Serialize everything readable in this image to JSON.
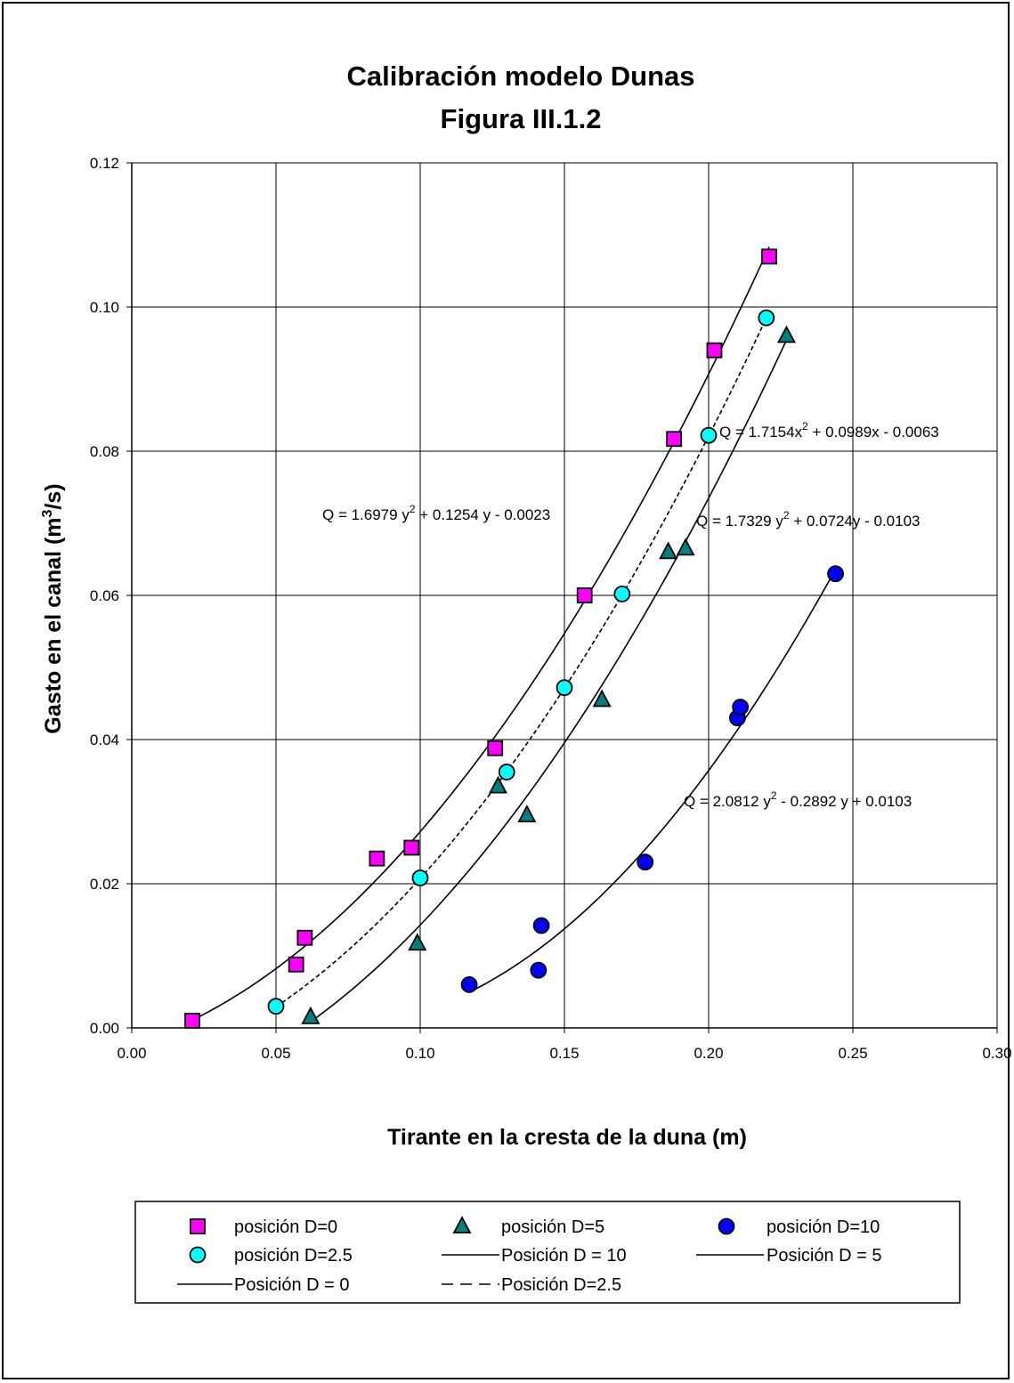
{
  "chart_data": {
    "type": "scatter",
    "title": "Calibración modelo Dunas",
    "subtitle": "Figura III.1.2",
    "xlabel": "Tirante en la cresta de la duna (m)",
    "ylabel_prefix": "Gasto en el canal (m",
    "ylabel_sup": "3",
    "ylabel_suffix": "/s)",
    "xlim": [
      0,
      0.3
    ],
    "ylim": [
      0,
      0.12
    ],
    "x_ticks": [
      "0.00",
      "0.05",
      "0.10",
      "0.15",
      "0.20",
      "0.25",
      "0.30"
    ],
    "y_ticks": [
      "0.00",
      "0.02",
      "0.04",
      "0.06",
      "0.08",
      "0.10",
      "0.12"
    ],
    "grid": true,
    "legend_position": "bottom",
    "series": [
      {
        "name": "posición D=0",
        "marker": "square",
        "color": "#ff00ff",
        "points": [
          [
            0.021,
            0.001
          ],
          [
            0.057,
            0.0088
          ],
          [
            0.06,
            0.0125
          ],
          [
            0.085,
            0.0235
          ],
          [
            0.097,
            0.025
          ],
          [
            0.126,
            0.0388
          ],
          [
            0.157,
            0.06
          ],
          [
            0.188,
            0.0817
          ],
          [
            0.202,
            0.094
          ],
          [
            0.221,
            0.107
          ]
        ]
      },
      {
        "name": "posición D=5",
        "marker": "triangle",
        "color": "#008080",
        "points": [
          [
            0.062,
            0.0015
          ],
          [
            0.099,
            0.0117
          ],
          [
            0.127,
            0.0335
          ],
          [
            0.137,
            0.0295
          ],
          [
            0.163,
            0.0455
          ],
          [
            0.186,
            0.066
          ],
          [
            0.192,
            0.0665
          ],
          [
            0.227,
            0.096
          ]
        ]
      },
      {
        "name": "posición D=10",
        "marker": "circle",
        "color": "#0000ff",
        "points": [
          [
            0.117,
            0.006
          ],
          [
            0.141,
            0.008
          ],
          [
            0.142,
            0.0142
          ],
          [
            0.178,
            0.023
          ],
          [
            0.21,
            0.043
          ],
          [
            0.211,
            0.0445
          ],
          [
            0.244,
            0.063
          ]
        ]
      },
      {
        "name": "posición D=2.5",
        "marker": "circle",
        "color": "#00ffff",
        "points": [
          [
            0.05,
            0.003
          ],
          [
            0.1,
            0.0208
          ],
          [
            0.13,
            0.0355
          ],
          [
            0.15,
            0.0472
          ],
          [
            0.17,
            0.0602
          ],
          [
            0.2,
            0.0822
          ],
          [
            0.22,
            0.0985
          ]
        ]
      }
    ],
    "trendlines": [
      {
        "name": "Posición D = 10",
        "style": "solid",
        "coeffs": [
          2.0812,
          -0.2892,
          0.0103
        ],
        "x_range": [
          0.117,
          0.244
        ]
      },
      {
        "name": "Posición D = 5",
        "style": "solid",
        "coeffs": [
          1.7329,
          0.0724,
          -0.0103
        ],
        "x_range": [
          0.062,
          0.227
        ]
      },
      {
        "name": "Posición D = 0",
        "style": "solid",
        "coeffs": [
          1.6979,
          0.1254,
          -0.0023
        ],
        "x_range": [
          0.021,
          0.221
        ]
      },
      {
        "name": "Posición D=2.5",
        "style": "dashed",
        "coeffs": [
          1.7154,
          0.0989,
          -0.0063
        ],
        "x_range": [
          0.05,
          0.22
        ]
      }
    ],
    "annotations": [
      {
        "pre": "Q = 1.6979 y",
        "sup": "2",
        "post": " + 0.1254 y - 0.0023"
      },
      {
        "pre": "Q = 1.7154x",
        "sup": "2",
        "post": " + 0.0989x - 0.0063"
      },
      {
        "pre": "Q = 1.7329 y",
        "sup": "2",
        "post": " + 0.0724y - 0.0103"
      },
      {
        "pre": "Q = 2.0812 y",
        "sup": "2",
        "post": " - 0.2892 y + 0.0103"
      }
    ],
    "legend": [
      {
        "label": "posición D=0",
        "kind": "marker",
        "series": 0
      },
      {
        "label": "posición D=5",
        "kind": "marker",
        "series": 1
      },
      {
        "label": "posición D=10",
        "kind": "marker",
        "series": 2
      },
      {
        "label": "posición D=2.5",
        "kind": "marker",
        "series": 3
      },
      {
        "label": "Posición D = 10",
        "kind": "line",
        "style": "solid"
      },
      {
        "label": "Posición D = 5",
        "kind": "line",
        "style": "solid"
      },
      {
        "label": "Posición D = 0",
        "kind": "line",
        "style": "solid"
      },
      {
        "label": "Posición D=2.5",
        "kind": "line",
        "style": "dashed"
      }
    ]
  }
}
